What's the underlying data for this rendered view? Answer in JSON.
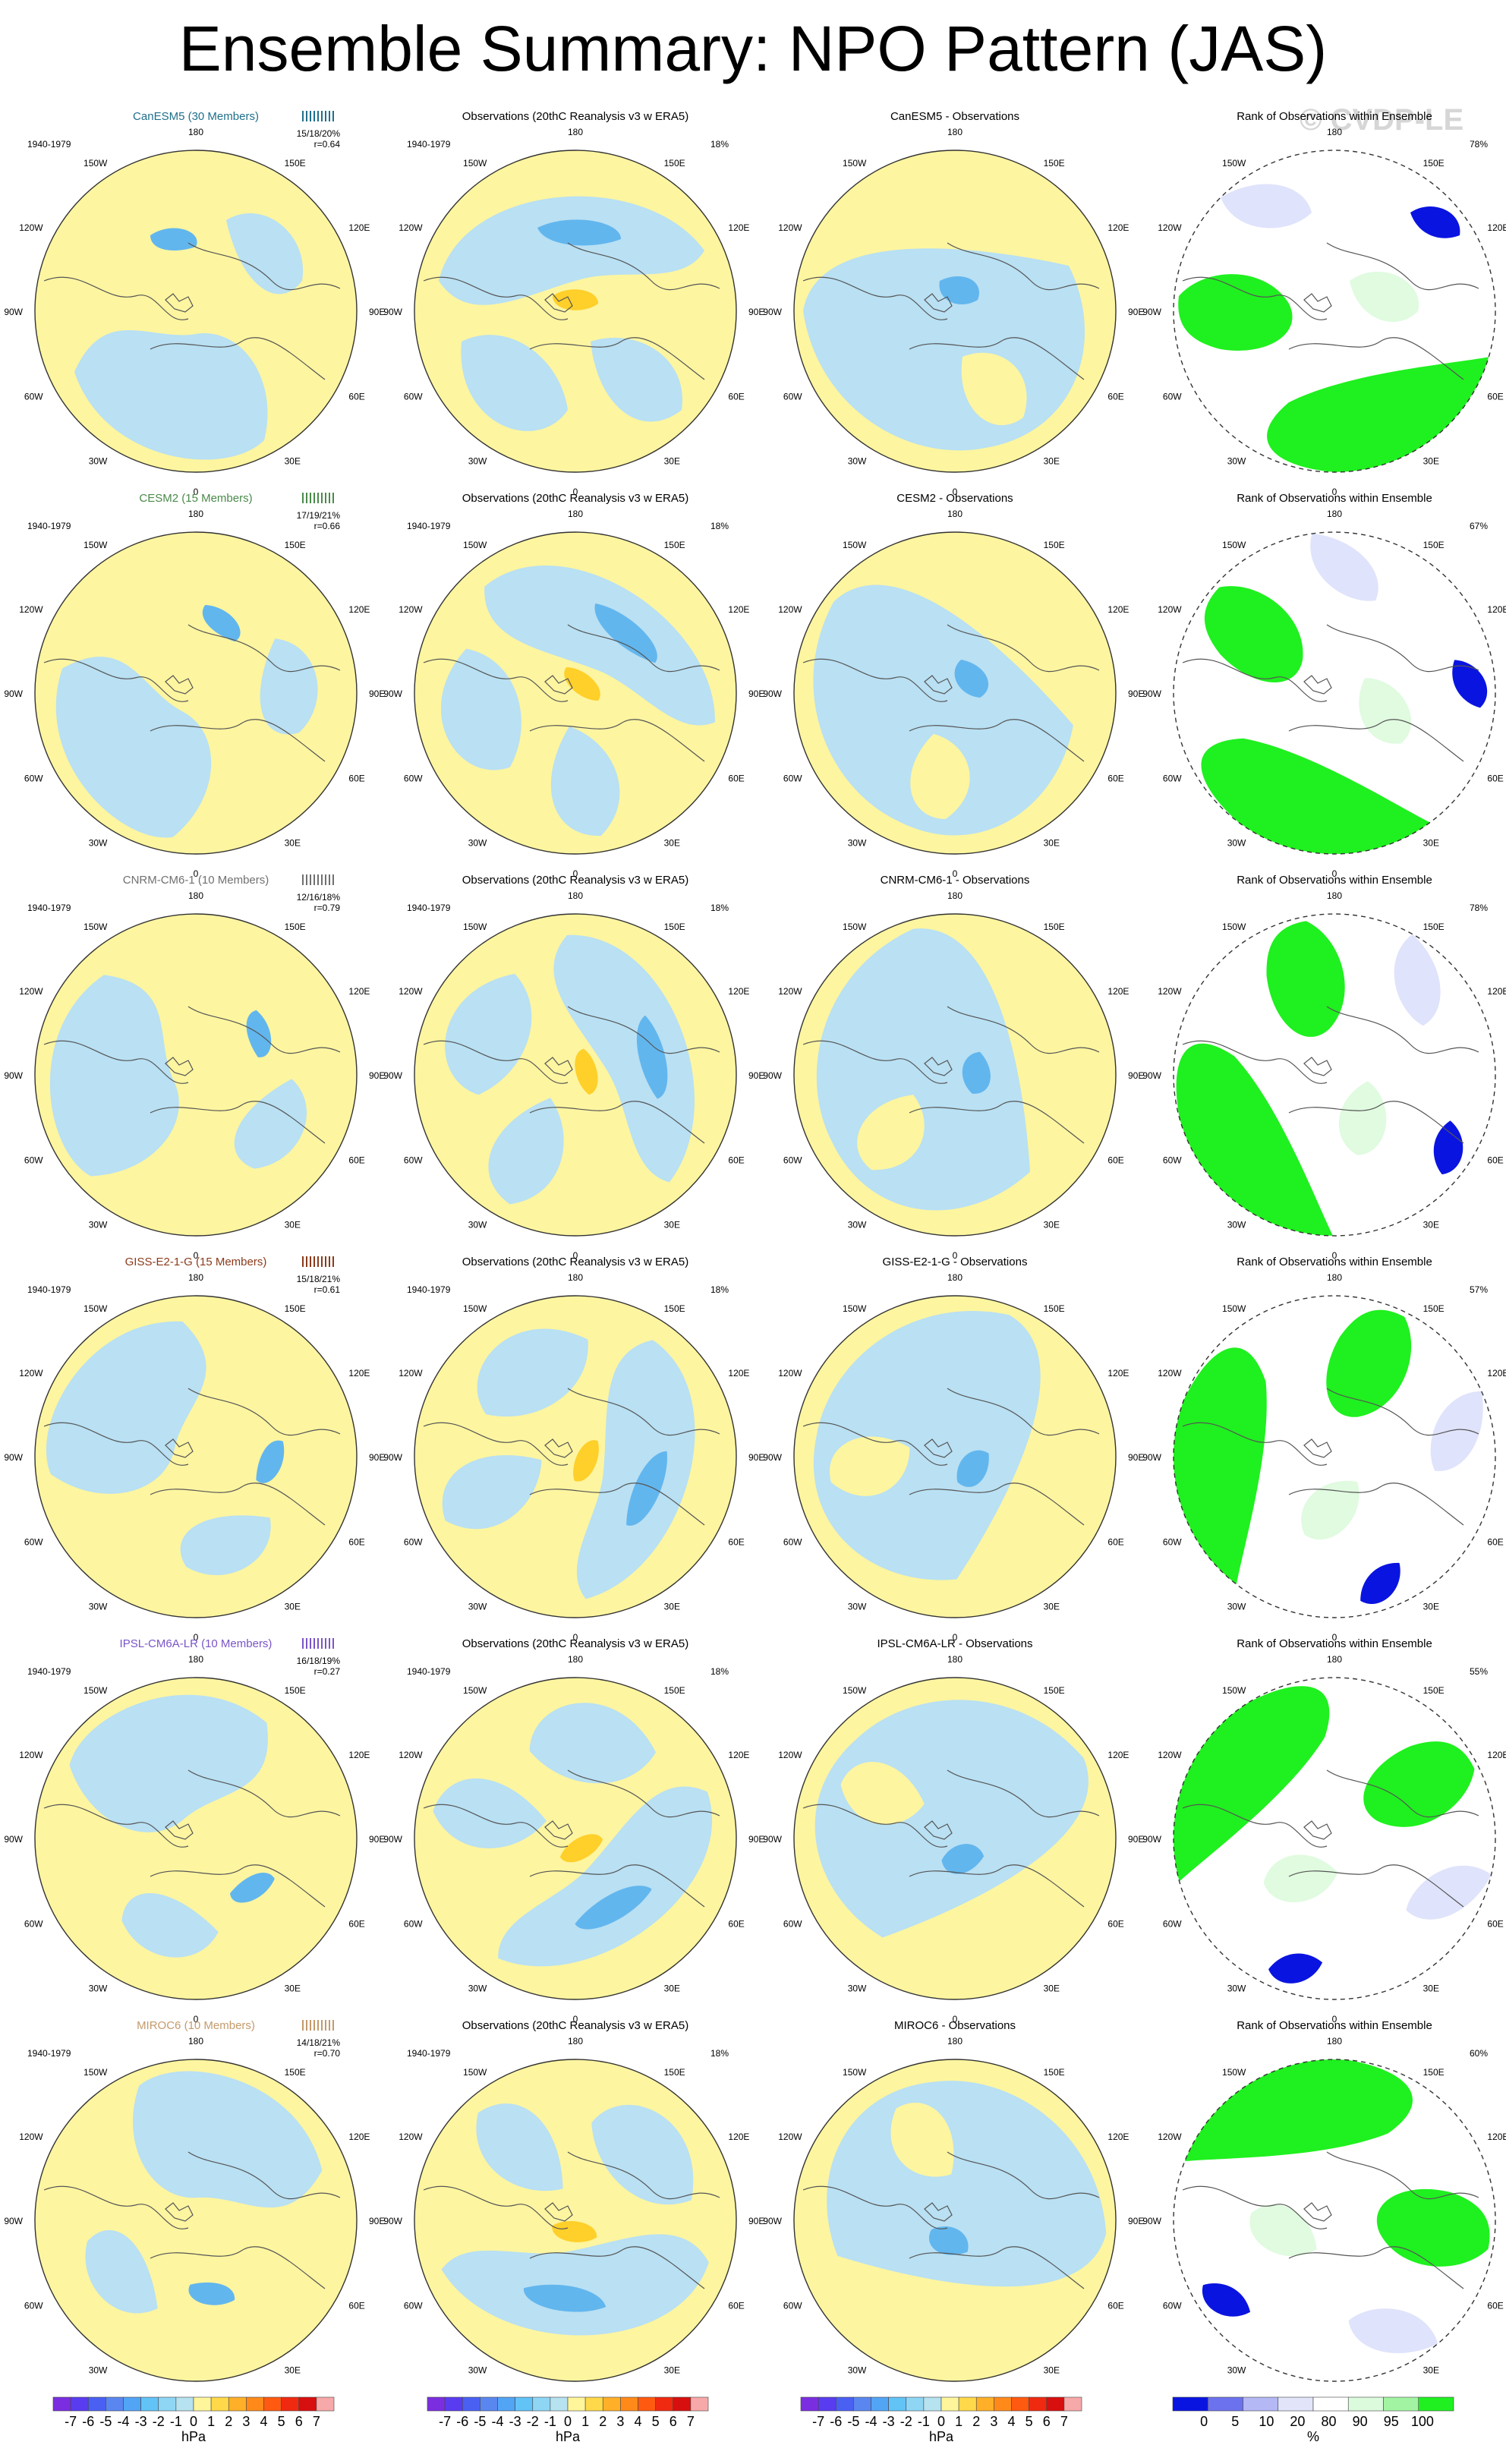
{
  "title": "Ensemble Summary: NPO Pattern (JAS)",
  "watermark": "© CVDP-LE",
  "period": "1940-1979",
  "lon_labels": {
    "top": "180",
    "tl": "150W",
    "tr": "150E",
    "ul": "120W",
    "ur": "120E",
    "ml": "90W",
    "mr": "90E",
    "ll": "60W",
    "lr": "60E",
    "bl": "30W",
    "br": "30E",
    "bottom": "0"
  },
  "obs_title": "Observations (20thC Reanalysis v3 w ERA5)",
  "obs_pct": "18%",
  "rank_title": "Rank of Observations within Ensemble",
  "rows": [
    {
      "model": "CanESM5 (30 Members)",
      "model_color": "#1f6f8b",
      "stats": "15/18/20%",
      "r": "r=0.64",
      "diff_title": "CanESM5 - Observations",
      "rank_pct": "78%"
    },
    {
      "model": "CESM2 (15 Members)",
      "model_color": "#4a8a4a",
      "stats": "17/19/21%",
      "r": "r=0.66",
      "diff_title": "CESM2 - Observations",
      "rank_pct": "67%"
    },
    {
      "model": "CNRM-CM6-1 (10 Members)",
      "model_color": "#707070",
      "stats": "12/16/18%",
      "r": "r=0.79",
      "diff_title": "CNRM-CM6-1 - Observations",
      "rank_pct": "78%"
    },
    {
      "model": "GISS-E2-1-G (15 Members)",
      "model_color": "#8b3a1a",
      "stats": "15/18/21%",
      "r": "r=0.61",
      "diff_title": "GISS-E2-1-G - Observations",
      "rank_pct": "57%"
    },
    {
      "model": "IPSL-CM6A-LR (10 Members)",
      "model_color": "#7a55c8",
      "stats": "16/18/19%",
      "r": "r=0.27",
      "diff_title": "IPSL-CM6A-LR - Observations",
      "rank_pct": "55%"
    },
    {
      "model": "MIROC6 (10 Members)",
      "model_color": "#c49a6c",
      "stats": "14/18/21%",
      "r": "r=0.70",
      "diff_title": "MIROC6 - Observations",
      "rank_pct": "60%"
    }
  ],
  "colorbar_hpa": {
    "labels": [
      "-7",
      "-6",
      "-5",
      "-4",
      "-3",
      "-2",
      "-1",
      "0",
      "1",
      "2",
      "3",
      "4",
      "5",
      "6",
      "7"
    ],
    "unit": "hPa",
    "colors": [
      "#7b2ee0",
      "#5a3cf0",
      "#4a60f2",
      "#5a86f0",
      "#52a4f5",
      "#62c3f7",
      "#8fd6f5",
      "#b7e2f0",
      "#fff59a",
      "#ffd94a",
      "#ffb028",
      "#ff8a1a",
      "#ff5a10",
      "#f02a10",
      "#d80f0f",
      "#f7a8a8"
    ]
  },
  "colorbar_pct": {
    "labels": [
      "0",
      "5",
      "10",
      "20",
      "80",
      "90",
      "95",
      "100"
    ],
    "unit": "%",
    "colors": [
      "#0a14e0",
      "#6c72ee",
      "#b4b8f4",
      "#e2e4fa",
      "#ffffff",
      "#dcfadc",
      "#a2f4a2",
      "#20f020"
    ]
  },
  "colors": {
    "neg": "#b9e0f3",
    "neg_strong": "#62b6ee",
    "pos": "#fdf5a0",
    "pos_strong": "#ffcf2a",
    "rank_blue": "#0a14e0",
    "rank_lightblue": "#dfe3fb",
    "rank_green": "#1ff01f",
    "rank_lightgreen": "#e0fbe0"
  }
}
